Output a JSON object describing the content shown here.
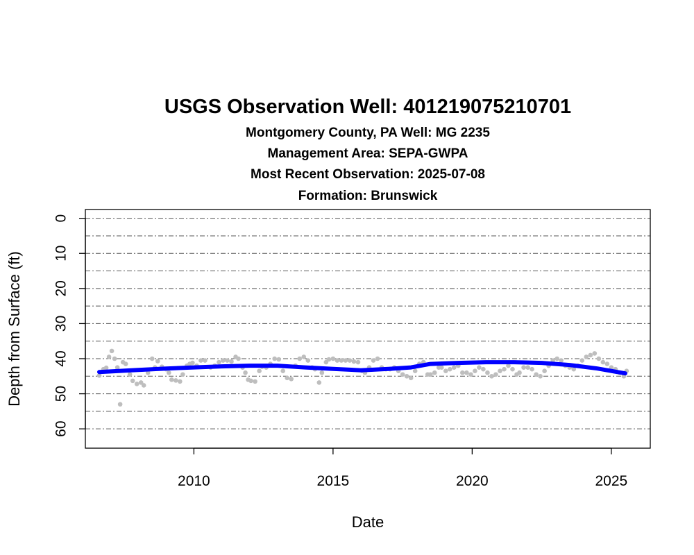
{
  "chart_data": {
    "type": "scatter",
    "title": "USGS Observation Well:  401219075210701",
    "subtitles": [
      "Montgomery County, PA   Well: MG 2235",
      "Management Area: SEPA-GWPA",
      "Most Recent Observation: 2025-07-08",
      "Formation: Brunswick"
    ],
    "xlabel": "Date",
    "ylabel": "Depth from Surface (ft)",
    "x_unit": "year",
    "xlim": [
      2006.1,
      2026.4
    ],
    "ylim_reversed": [
      -2.5,
      65.5
    ],
    "x_ticks": [
      "2010",
      "2015",
      "2020",
      "2025"
    ],
    "y_ticks": [
      "0",
      "10",
      "20",
      "30",
      "40",
      "50",
      "60"
    ],
    "grid": "dash-dot horizontal lines every 5 ft",
    "colors": {
      "observations": "#bebebe",
      "trend": "#0000ff",
      "grid": "#555555"
    },
    "series": [
      {
        "kind": "points",
        "points": [
          [
            2006.6,
            44.8
          ],
          [
            2006.75,
            43.0
          ],
          [
            2006.85,
            42.6
          ],
          [
            2006.95,
            39.5
          ],
          [
            2007.05,
            37.8
          ],
          [
            2007.15,
            40.0
          ],
          [
            2007.25,
            42.5
          ],
          [
            2007.35,
            53.0
          ],
          [
            2007.45,
            41.0
          ],
          [
            2007.55,
            41.5
          ],
          [
            2007.7,
            44.5
          ],
          [
            2007.8,
            46.3
          ],
          [
            2007.95,
            47.2
          ],
          [
            2008.1,
            46.8
          ],
          [
            2008.2,
            47.6
          ],
          [
            2008.35,
            44.0
          ],
          [
            2008.5,
            40.0
          ],
          [
            2008.6,
            42.5
          ],
          [
            2008.7,
            40.7
          ],
          [
            2008.85,
            42.3
          ],
          [
            2009.0,
            43.0
          ],
          [
            2009.1,
            44.0
          ],
          [
            2009.2,
            46.0
          ],
          [
            2009.35,
            46.2
          ],
          [
            2009.5,
            46.5
          ],
          [
            2009.6,
            44.5
          ],
          [
            2009.75,
            42.0
          ],
          [
            2009.85,
            41.5
          ],
          [
            2009.95,
            41.2
          ],
          [
            2010.1,
            42.0
          ],
          [
            2010.25,
            40.5
          ],
          [
            2010.4,
            40.5
          ],
          [
            2010.6,
            42.5
          ],
          [
            2010.75,
            42.0
          ],
          [
            2010.9,
            41.0
          ],
          [
            2011.05,
            40.5
          ],
          [
            2011.2,
            40.5
          ],
          [
            2011.35,
            40.8
          ],
          [
            2011.5,
            39.5
          ],
          [
            2011.6,
            40.0
          ],
          [
            2011.75,
            42.5
          ],
          [
            2011.85,
            44.0
          ],
          [
            2011.95,
            46.0
          ],
          [
            2012.05,
            46.3
          ],
          [
            2012.2,
            46.5
          ],
          [
            2012.35,
            43.5
          ],
          [
            2012.45,
            42.3
          ],
          [
            2012.6,
            42.5
          ],
          [
            2012.75,
            41.5
          ],
          [
            2012.9,
            40.0
          ],
          [
            2013.05,
            40.2
          ],
          [
            2013.2,
            43.5
          ],
          [
            2013.35,
            45.5
          ],
          [
            2013.5,
            45.8
          ],
          [
            2013.65,
            42.0
          ],
          [
            2013.8,
            40.0
          ],
          [
            2013.95,
            39.5
          ],
          [
            2014.1,
            40.5
          ],
          [
            2014.25,
            42.5
          ],
          [
            2014.35,
            43.0
          ],
          [
            2014.5,
            46.8
          ],
          [
            2014.6,
            44.0
          ],
          [
            2014.75,
            41.0
          ],
          [
            2014.85,
            40.2
          ],
          [
            2015.0,
            40.0
          ],
          [
            2015.15,
            40.5
          ],
          [
            2015.3,
            40.5
          ],
          [
            2015.45,
            40.5
          ],
          [
            2015.6,
            40.5
          ],
          [
            2015.75,
            40.8
          ],
          [
            2015.9,
            41.0
          ],
          [
            2016.05,
            43.5
          ],
          [
            2016.15,
            44.0
          ],
          [
            2016.3,
            42.5
          ],
          [
            2016.45,
            40.5
          ],
          [
            2016.6,
            40.0
          ],
          [
            2016.75,
            42.5
          ],
          [
            2016.9,
            43.0
          ],
          [
            2017.05,
            43.0
          ],
          [
            2017.2,
            42.5
          ],
          [
            2017.35,
            43.5
          ],
          [
            2017.5,
            44.5
          ],
          [
            2017.65,
            45.0
          ],
          [
            2017.8,
            45.5
          ],
          [
            2017.95,
            43.5
          ],
          [
            2018.1,
            41.5
          ],
          [
            2018.25,
            41.0
          ],
          [
            2018.4,
            44.5
          ],
          [
            2018.5,
            44.5
          ],
          [
            2018.65,
            44.0
          ],
          [
            2018.8,
            42.5
          ],
          [
            2018.9,
            42.5
          ],
          [
            2019.05,
            43.5
          ],
          [
            2019.2,
            43.0
          ],
          [
            2019.35,
            42.5
          ],
          [
            2019.5,
            42.0
          ],
          [
            2019.65,
            44.0
          ],
          [
            2019.8,
            44.0
          ],
          [
            2019.95,
            44.5
          ],
          [
            2020.1,
            43.5
          ],
          [
            2020.25,
            42.5
          ],
          [
            2020.4,
            43.0
          ],
          [
            2020.55,
            44.0
          ],
          [
            2020.7,
            45.0
          ],
          [
            2020.85,
            44.5
          ],
          [
            2021.0,
            43.5
          ],
          [
            2021.15,
            43.0
          ],
          [
            2021.3,
            42.0
          ],
          [
            2021.45,
            43.0
          ],
          [
            2021.6,
            44.5
          ],
          [
            2021.7,
            44.0
          ],
          [
            2021.85,
            42.5
          ],
          [
            2022.0,
            42.5
          ],
          [
            2022.15,
            43.0
          ],
          [
            2022.3,
            44.5
          ],
          [
            2022.45,
            45.0
          ],
          [
            2022.6,
            43.5
          ],
          [
            2022.75,
            42.0
          ],
          [
            2022.9,
            40.5
          ],
          [
            2023.05,
            40.0
          ],
          [
            2023.2,
            40.5
          ],
          [
            2023.35,
            42.0
          ],
          [
            2023.5,
            42.5
          ],
          [
            2023.65,
            43.0
          ],
          [
            2023.8,
            42.0
          ],
          [
            2023.95,
            40.5
          ],
          [
            2024.1,
            39.5
          ],
          [
            2024.25,
            39.0
          ],
          [
            2024.4,
            38.5
          ],
          [
            2024.55,
            40.0
          ],
          [
            2024.7,
            41.0
          ],
          [
            2024.85,
            41.5
          ],
          [
            2025.0,
            42.5
          ],
          [
            2025.15,
            43.0
          ],
          [
            2025.3,
            44.0
          ],
          [
            2025.45,
            45.0
          ],
          [
            2025.55,
            43.5
          ]
        ]
      },
      {
        "kind": "trend",
        "points": [
          [
            2006.6,
            43.8
          ],
          [
            2008.0,
            43.2
          ],
          [
            2009.0,
            42.8
          ],
          [
            2010.0,
            42.5
          ],
          [
            2011.0,
            42.2
          ],
          [
            2012.0,
            42.0
          ],
          [
            2013.0,
            42.0
          ],
          [
            2014.0,
            42.5
          ],
          [
            2015.0,
            42.9
          ],
          [
            2016.0,
            43.3
          ],
          [
            2017.0,
            42.9
          ],
          [
            2017.8,
            42.5
          ],
          [
            2018.5,
            41.5
          ],
          [
            2019.5,
            41.2
          ],
          [
            2020.5,
            41.0
          ],
          [
            2021.5,
            41.0
          ],
          [
            2022.5,
            41.2
          ],
          [
            2023.5,
            41.8
          ],
          [
            2024.5,
            42.8
          ],
          [
            2025.5,
            44.2
          ]
        ]
      }
    ]
  }
}
